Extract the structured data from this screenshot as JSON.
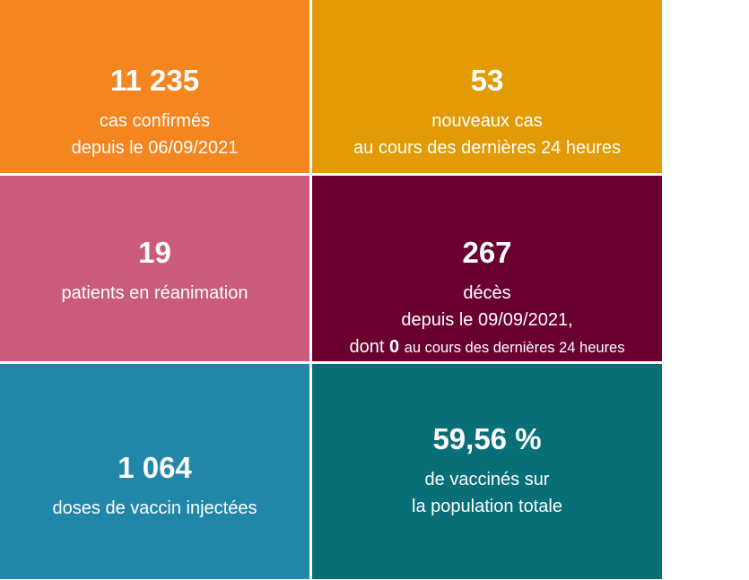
{
  "tiles": [
    {
      "value": "11 235",
      "lines": [
        "cas confirmés",
        "depuis le 06/09/2021"
      ]
    },
    {
      "value": "53",
      "lines": [
        "nouveaux cas",
        "au cours des dernières 24 heures"
      ]
    },
    {
      "value": "19",
      "lines": [
        "patients en réanimation"
      ]
    },
    {
      "value": "267",
      "lines": [
        "décès",
        "depuis le 09/09/2021,"
      ],
      "note": {
        "prefix": "dont",
        "bold": "0",
        "suffix": "au cours des dernières 24 heures"
      }
    },
    {
      "value": "1 064",
      "lines": [
        "doses de vaccin injectées"
      ]
    },
    {
      "value": "59,56 %",
      "lines": [
        "de vaccinés sur",
        "la population totale"
      ]
    }
  ]
}
